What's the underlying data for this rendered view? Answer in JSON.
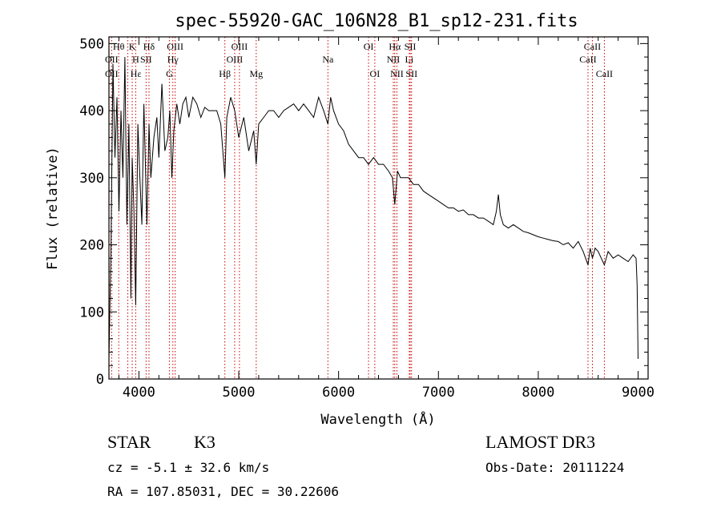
{
  "chart_data": {
    "type": "line",
    "title": "spec-55920-GAC_106N28_B1_sp12-231.fits",
    "xlabel": "Wavelength (Å)",
    "ylabel": "Flux (relative)",
    "xlim": [
      3700,
      9100
    ],
    "ylim": [
      0,
      510
    ],
    "xticks": [
      4000,
      5000,
      6000,
      7000,
      8000,
      9000
    ],
    "yticks": [
      0,
      100,
      200,
      300,
      400,
      500
    ],
    "series": [
      {
        "name": "flux",
        "color": "#000000",
        "x": [
          3700,
          3720,
          3740,
          3760,
          3780,
          3800,
          3820,
          3840,
          3860,
          3880,
          3900,
          3920,
          3933,
          3950,
          3968,
          3990,
          4010,
          4030,
          4050,
          4080,
          4101,
          4120,
          4150,
          4180,
          4200,
          4230,
          4260,
          4290,
          4310,
          4330,
          4350,
          4380,
          4410,
          4440,
          4470,
          4500,
          4540,
          4580,
          4620,
          4660,
          4700,
          4740,
          4780,
          4820,
          4861,
          4880,
          4920,
          4960,
          5000,
          5050,
          5100,
          5150,
          5175,
          5200,
          5250,
          5300,
          5350,
          5400,
          5450,
          5500,
          5550,
          5600,
          5650,
          5700,
          5750,
          5800,
          5850,
          5893,
          5920,
          5950,
          6000,
          6050,
          6100,
          6150,
          6200,
          6250,
          6300,
          6350,
          6400,
          6450,
          6500,
          6540,
          6563,
          6590,
          6620,
          6650,
          6700,
          6750,
          6800,
          6850,
          6900,
          6950,
          7000,
          7050,
          7100,
          7150,
          7200,
          7250,
          7300,
          7350,
          7400,
          7450,
          7500,
          7550,
          7580,
          7600,
          7620,
          7650,
          7700,
          7750,
          7800,
          7850,
          7900,
          7950,
          8000,
          8050,
          8100,
          8150,
          8200,
          8250,
          8300,
          8350,
          8400,
          8450,
          8498,
          8520,
          8542,
          8570,
          8600,
          8662,
          8700,
          8750,
          8800,
          8850,
          8900,
          8950,
          8980,
          8990,
          9000
        ],
        "values": [
          30,
          190,
          470,
          330,
          420,
          250,
          400,
          300,
          480,
          230,
          380,
          120,
          330,
          250,
          110,
          380,
          300,
          230,
          410,
          230,
          380,
          300,
          360,
          390,
          330,
          440,
          340,
          360,
          400,
          300,
          370,
          410,
          380,
          410,
          420,
          390,
          420,
          410,
          390,
          405,
          400,
          400,
          400,
          380,
          300,
          390,
          420,
          400,
          360,
          390,
          340,
          370,
          320,
          380,
          390,
          400,
          400,
          390,
          400,
          405,
          410,
          400,
          410,
          400,
          390,
          420,
          400,
          380,
          420,
          400,
          380,
          370,
          350,
          340,
          330,
          330,
          320,
          330,
          320,
          320,
          310,
          300,
          260,
          310,
          300,
          300,
          300,
          290,
          290,
          280,
          275,
          270,
          265,
          260,
          255,
          255,
          250,
          252,
          245,
          245,
          240,
          240,
          235,
          230,
          250,
          275,
          245,
          230,
          225,
          230,
          225,
          220,
          218,
          215,
          212,
          210,
          208,
          206,
          205,
          200,
          203,
          195,
          205,
          190,
          170,
          195,
          180,
          195,
          190,
          170,
          190,
          180,
          185,
          180,
          175,
          185,
          180,
          140,
          30
        ]
      }
    ],
    "spectral_lines": [
      {
        "label": "Hθ",
        "wavelength": 3798,
        "row": 1
      },
      {
        "label": "K",
        "wavelength": 3933,
        "row": 1
      },
      {
        "label": "Hδ",
        "wavelength": 4101,
        "row": 1
      },
      {
        "label": "OII",
        "wavelength": 3727,
        "row": 2
      },
      {
        "label": "H",
        "wavelength": 3968,
        "row": 2
      },
      {
        "label": "SII",
        "wavelength": 4072,
        "row": 2
      },
      {
        "label": "OII",
        "wavelength": 3727,
        "row": 3
      },
      {
        "label": "Hε",
        "wavelength": 3970,
        "row": 3
      },
      {
        "label": "OIII",
        "wavelength": 4363,
        "row": 1
      },
      {
        "label": "Hγ",
        "wavelength": 4340,
        "row": 2
      },
      {
        "label": "G",
        "wavelength": 4305,
        "row": 3
      },
      {
        "label": "Hβ",
        "wavelength": 4861,
        "row": 3
      },
      {
        "label": "OIII",
        "wavelength": 5007,
        "row": 1
      },
      {
        "label": "OIII",
        "wavelength": 4959,
        "row": 2
      },
      {
        "label": "Mg",
        "wavelength": 5175,
        "row": 3
      },
      {
        "label": "Na",
        "wavelength": 5893,
        "row": 2
      },
      {
        "label": "OI",
        "wavelength": 6300,
        "row": 1
      },
      {
        "label": "OI",
        "wavelength": 6363,
        "row": 3
      },
      {
        "label": "Hα",
        "wavelength": 6563,
        "row": 1
      },
      {
        "label": "NII",
        "wavelength": 6548,
        "row": 2
      },
      {
        "label": "NII",
        "wavelength": 6584,
        "row": 3
      },
      {
        "label": "SII",
        "wavelength": 6717,
        "row": 1
      },
      {
        "label": "Li",
        "wavelength": 6708,
        "row": 2
      },
      {
        "label": "SII",
        "wavelength": 6731,
        "row": 3
      },
      {
        "label": "CaII",
        "wavelength": 8542,
        "row": 1
      },
      {
        "label": "CaII",
        "wavelength": 8498,
        "row": 2
      },
      {
        "label": "CaII",
        "wavelength": 8662,
        "row": 3
      }
    ],
    "line_marker_wavelengths": [
      3727,
      3798,
      3889,
      3933,
      3968,
      4072,
      4101,
      4305,
      4340,
      4363,
      4861,
      4959,
      5007,
      5175,
      5893,
      6300,
      6363,
      6548,
      6563,
      6584,
      6708,
      6717,
      6731,
      8498,
      8542,
      8662
    ],
    "colors": {
      "line_marker": "#cc0000",
      "spectrum": "#000000"
    }
  },
  "footer": {
    "object_class": "STAR",
    "subclass": "K3",
    "redshift": "cz = -5.1 ± 32.6 km/s",
    "coords": "RA = 107.85031, DEC =  30.22606",
    "survey": "LAMOST DR3",
    "obs_date": "Obs-Date: 20111224"
  }
}
